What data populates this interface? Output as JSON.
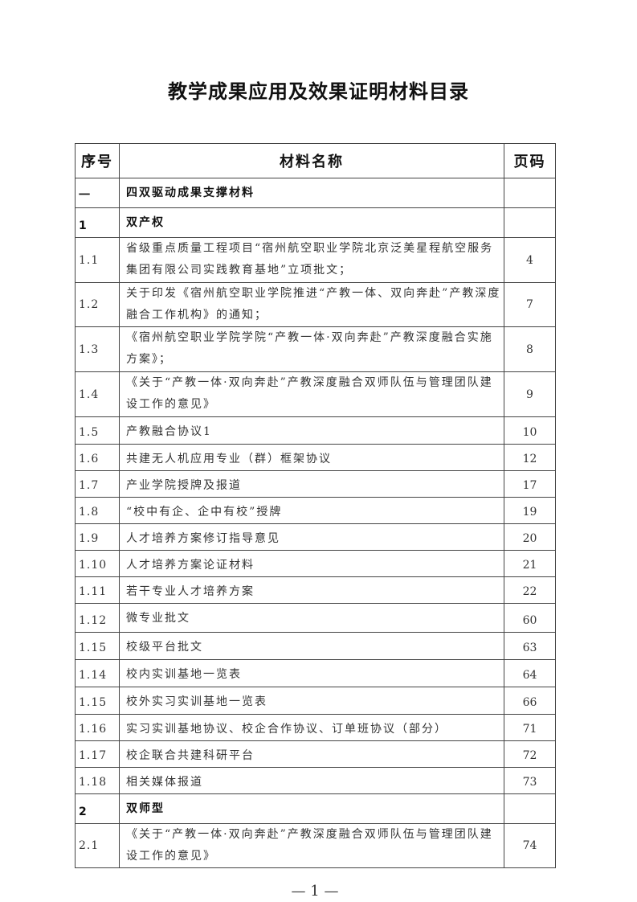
{
  "title": "教学成果应用及效果证明材料目录",
  "table": {
    "headers": [
      "序号",
      "材料名称",
      "页码"
    ],
    "rows": [
      {
        "no": "一",
        "name": "四双驱动成果支撑材料",
        "page": "",
        "style": "bold",
        "h": 29
      },
      {
        "no": "1",
        "name": "双产权",
        "page": "",
        "style": "bold",
        "h": 33
      },
      {
        "no": "1.1",
        "name": "省级重点质量工程项目“宿州航空职业学院北京泛美星程航空服务集团有限公司实践教育基地”立项批文；",
        "page": "4",
        "style": "two",
        "h": 56
      },
      {
        "no": "1.2",
        "name": "关于印发《宿州航空职业学院推进“产教一体、双向奔赴”产教深度融合工作机构》的通知；",
        "page": "7",
        "style": "two",
        "h": 54
      },
      {
        "no": "1.3",
        "name": "《宿州航空职业学院学院“产教一体·双向奔赴”产教深度融合实施方案》；",
        "page": "8",
        "style": "two",
        "h": 56
      },
      {
        "no": "1.4",
        "name": "《关于“产教一体·双向奔赴”产教深度融合双师队伍与管理团队建设工作的意见》",
        "page": "9",
        "style": "two",
        "h": 56
      },
      {
        "no": "1.5",
        "name": "产教融合协议1",
        "page": "10",
        "style": "",
        "h": 34
      },
      {
        "no": "1.6",
        "name": "共建无人机应用专业（群）框架协议",
        "page": "12",
        "style": "",
        "h": 33
      },
      {
        "no": "1.7",
        "name": "产业学院授牌及报道",
        "page": "17",
        "style": "",
        "h": 33
      },
      {
        "no": "1.8",
        "name": "“校中有企、企中有校”授牌",
        "page": "19",
        "style": "",
        "h": 32
      },
      {
        "no": "1.9",
        "name": "人才培养方案修订指导意见",
        "page": "20",
        "style": "",
        "h": 32
      },
      {
        "no": "1.10",
        "name": "人才培养方案论证材料",
        "page": "21",
        "style": "",
        "h": 32
      },
      {
        "no": "1.11",
        "name": "若干专业人才培养方案",
        "page": "22",
        "style": "",
        "h": 33
      },
      {
        "no": "1.12",
        "name": "微专业批文",
        "page": "60",
        "style": "",
        "h": 36
      },
      {
        "no": "1.15",
        "name": "校级平台批文",
        "page": "63",
        "style": "",
        "h": 34
      },
      {
        "no": "1.14",
        "name": "校内实训基地一览表",
        "page": "64",
        "style": "",
        "h": 34
      },
      {
        "no": "1.15",
        "name": "校外实习实训基地一览表",
        "page": "66",
        "style": "",
        "h": 34
      },
      {
        "no": "1.16",
        "name": "实习实训基地协议、校企合作协议、订单班协议（部分）",
        "page": "71",
        "style": "",
        "h": 33
      },
      {
        "no": "1.17",
        "name": "校企联合共建科研平台",
        "page": "72",
        "style": "",
        "h": 33
      },
      {
        "no": "1.18",
        "name": "相关媒体报道",
        "page": "73",
        "style": "",
        "h": 33
      },
      {
        "no": "2",
        "name": "双师型",
        "page": "",
        "style": "bold",
        "h": 33
      },
      {
        "no": "2.1",
        "name": "《关于“产教一体·双向奔赴”产教深度融合双师队伍与管理团队建设工作的意见》",
        "page": "74",
        "style": "two",
        "h": 55
      }
    ]
  },
  "page_number": "— 1 —"
}
